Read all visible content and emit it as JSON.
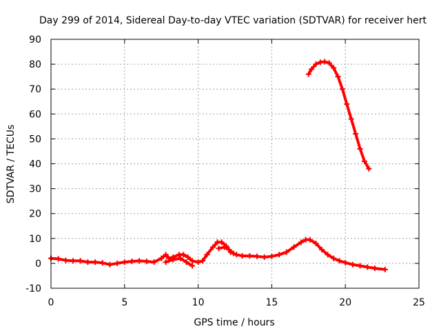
{
  "chart_data": {
    "type": "scatter",
    "title": "Day 299 of 2014, Sidereal Day-to-day VTEC variation (SDTVAR) for receiver hert",
    "xlabel": "GPS time / hours",
    "ylabel": "SDTVAR / TECUs",
    "xlim": [
      0,
      25
    ],
    "ylim": [
      -10,
      90
    ],
    "xticks": [
      0,
      5,
      10,
      15,
      20,
      25
    ],
    "yticks": [
      -10,
      0,
      10,
      20,
      30,
      40,
      50,
      60,
      70,
      80,
      90
    ],
    "grid": true,
    "legend": "none",
    "series": [
      {
        "name": "SDTVAR",
        "color": "#ff0000",
        "segments": [
          {
            "x": [
              0,
              0.5,
              1,
              1.5,
              2,
              2.5,
              3,
              3.5,
              4,
              4.5,
              5,
              5.5,
              6,
              6.5,
              7,
              7.5,
              7.8,
              8,
              8.3,
              8.7,
              9,
              9.3,
              9.6,
              10,
              10.3,
              10.6,
              11,
              11.3,
              11.6,
              11.9,
              12.2,
              12.6,
              13,
              13.5,
              14,
              14.5,
              15,
              15.5,
              16,
              16.5,
              17,
              17.3,
              17.6,
              18,
              18.4,
              18.8,
              19.2,
              19.6,
              20,
              20.5,
              21,
              21.5,
              22,
              22.7
            ],
            "y": [
              2,
              1.8,
              1.2,
              1,
              1,
              0.5,
              0.5,
              0.2,
              -0.5,
              0,
              0.5,
              0.8,
              1,
              0.8,
              0.5,
              2,
              3.5,
              2,
              2.5,
              3.5,
              3.5,
              2.5,
              1,
              0.5,
              1,
              3.5,
              6.5,
              8.5,
              8.5,
              7,
              4.5,
              3.5,
              3,
              3,
              2.8,
              2.5,
              2.8,
              3.5,
              4.5,
              6.5,
              8.5,
              9.5,
              9.5,
              8,
              5.5,
              3.5,
              2,
              1,
              0.3,
              -0.5,
              -1,
              -1.5,
              -2,
              -2.5
            ]
          },
          {
            "x": [
              7.8,
              8.3,
              8.8,
              9.2,
              9.6
            ],
            "y": [
              0.5,
              1.5,
              2,
              0.5,
              -1
            ]
          },
          {
            "x": [
              11.4,
              11.8,
              12.1,
              12.4
            ],
            "y": [
              6,
              6.5,
              5.5,
              4
            ]
          },
          {
            "x": [
              17.5,
              17.7,
              18,
              18.3,
              18.6,
              18.9,
              19.2,
              19.5,
              19.8,
              20.1,
              20.4,
              20.7,
              21,
              21.3,
              21.6
            ],
            "y": [
              76,
              78,
              80,
              80.8,
              81,
              80.5,
              78.5,
              75,
              70,
              64,
              58,
              52,
              46,
              41,
              38
            ]
          }
        ]
      }
    ]
  }
}
